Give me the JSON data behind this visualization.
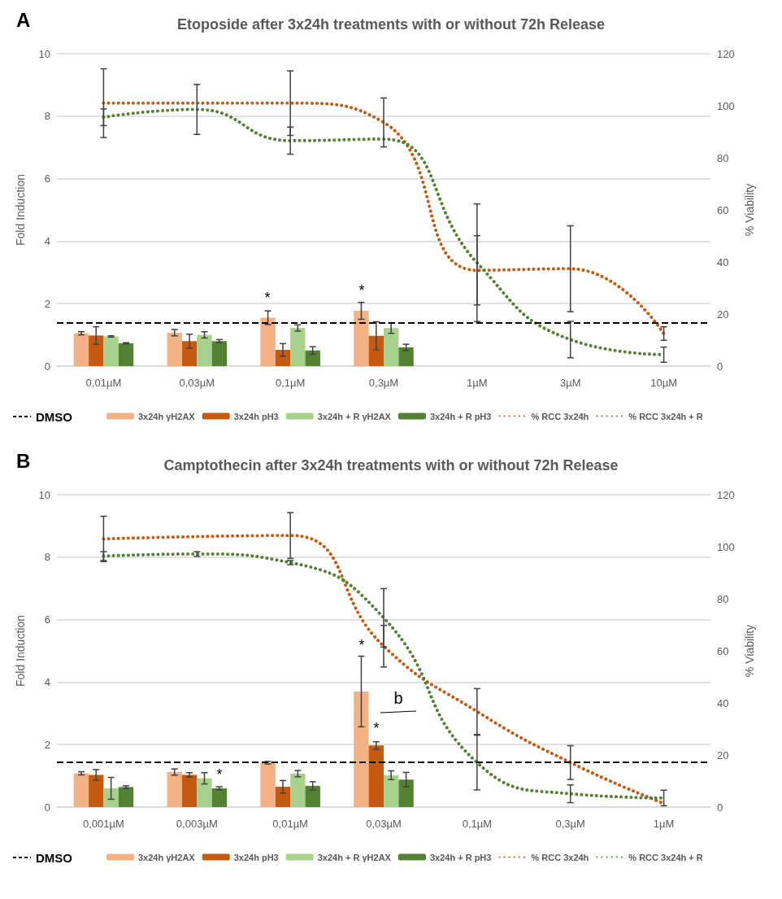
{
  "chart_data": [
    {
      "type": "bar",
      "title": "Etoposide after 3x24h treatments with or without 72h Release",
      "ylabel": "Fold Induction",
      "y2label": "% Viability",
      "categories": [
        "0,01µM",
        "0,03µM",
        "0,1µM",
        "0,3µM",
        "1µM",
        "3µM",
        "10µM"
      ],
      "series": [
        {
          "name": "3x24h γH2AX",
          "color": "#f4b183",
          "values": [
            1.05,
            1.07,
            1.55,
            1.77,
            null,
            null,
            null
          ],
          "errors": [
            0.05,
            0.1,
            0.22,
            0.27,
            null,
            null,
            null
          ]
        },
        {
          "name": "3x24h pH3",
          "color": "#c55a11",
          "values": [
            0.98,
            0.8,
            0.52,
            0.97,
            null,
            null,
            null
          ],
          "errors": [
            0.28,
            0.22,
            0.2,
            0.45,
            null,
            null,
            null
          ]
        },
        {
          "name": "3x24h + R γH2AX",
          "color": "#a9d18e",
          "values": [
            0.95,
            1.0,
            1.22,
            1.22,
            null,
            null,
            null
          ],
          "errors": [
            0.02,
            0.1,
            0.1,
            0.17,
            null,
            null,
            null
          ]
        },
        {
          "name": "3x24h + R pH3",
          "color": "#548235",
          "values": [
            0.73,
            0.8,
            0.5,
            0.6,
            null,
            null,
            null
          ],
          "errors": [
            0.02,
            0.05,
            0.12,
            0.1,
            null,
            null,
            null
          ]
        },
        {
          "name": "% RCC 3x24h",
          "type": "line",
          "axis": "y2",
          "color": "#c55a11",
          "line_style": "dotted",
          "marker": "none",
          "values": [
            101,
            null,
            101,
            93.6,
            36.8,
            37.4,
            12.5
          ],
          "errors": [
            13.2,
            null,
            12.4,
            9.4,
            13.3,
            16.5,
            2.6
          ]
        },
        {
          "name": "% RCC 3x24h + R",
          "type": "line",
          "axis": "y2",
          "color": "#548235",
          "line_style": "dotted",
          "marker": "none",
          "values": [
            95.6,
            98.6,
            86.6,
            87.2,
            39.7,
            10.2,
            4.4
          ],
          "errors": [
            3.2,
            9.6,
            5.2,
            null,
            22.6,
            7,
            2.9
          ]
        }
      ],
      "ylim": [
        0,
        10
      ],
      "yticks": [
        0,
        2,
        4,
        6,
        8,
        10
      ],
      "y2lim": [
        0,
        120
      ],
      "y2ticks": [
        0,
        20,
        40,
        60,
        80,
        100,
        120
      ],
      "grid": "y",
      "legend": "bottom",
      "ref_lines": [
        {
          "axis": "y",
          "value": 1.38,
          "label": "DMSO",
          "color": "#000000",
          "line_style": "dashed"
        }
      ],
      "annotations": [
        "A",
        "*",
        "*"
      ]
    },
    {
      "type": "bar",
      "title": "Camptothecin after 3x24h treatments with or without 72h Release",
      "ylabel": "Fold Induction",
      "y2label": "% Viability",
      "categories": [
        "0,001µM",
        "0,003µM",
        "0,01µM",
        "0,03µM",
        "0,1µM",
        "0,3µM",
        "1µM"
      ],
      "series": [
        {
          "name": "3x24h γH2AX",
          "color": "#f4b183",
          "values": [
            1.08,
            1.12,
            1.42,
            3.7,
            null,
            null,
            null
          ],
          "errors": [
            0.05,
            0.1,
            0.04,
            1.13,
            null,
            null,
            null
          ]
        },
        {
          "name": "3x24h pH3",
          "color": "#c55a11",
          "values": [
            1.03,
            1.03,
            0.65,
            1.97,
            null,
            null,
            null
          ],
          "errors": [
            0.17,
            0.07,
            0.2,
            0.12,
            null,
            null,
            null
          ]
        },
        {
          "name": "3x24h + R γH2AX",
          "color": "#a9d18e",
          "values": [
            0.6,
            0.92,
            1.07,
            1.02,
            null,
            null,
            null
          ],
          "errors": [
            0.35,
            0.18,
            0.1,
            0.14,
            null,
            null,
            null
          ]
        },
        {
          "name": "3x24h + R pH3",
          "color": "#548235",
          "values": [
            0.64,
            0.6,
            0.68,
            0.88,
            null,
            null,
            null
          ],
          "errors": [
            0.04,
            0.05,
            0.13,
            0.23,
            null,
            null,
            null
          ]
        },
        {
          "name": "% RCC 3x24h",
          "type": "line",
          "axis": "y2",
          "color": "#c55a11",
          "line_style": "dotted",
          "marker": "none",
          "values": [
            103,
            null,
            104.3,
            61.8,
            36.7,
            17.1,
            1.4
          ],
          "errors": [
            8.7,
            null,
            8.8,
            8,
            8.8,
            6.5,
            null
          ]
        },
        {
          "name": "% RCC 3x24h + R",
          "type": "line",
          "axis": "y2",
          "color": "#548235",
          "line_style": "dotted",
          "marker": "none",
          "values": [
            96.4,
            97.2,
            93.9,
            72.7,
            17.1,
            5.1,
            3.5
          ],
          "errors": [
            1.7,
            0.9,
            0.8,
            11.2,
            10.5,
            3.4,
            3
          ]
        }
      ],
      "ylim": [
        0,
        10
      ],
      "yticks": [
        0,
        2,
        4,
        6,
        8,
        10
      ],
      "y2lim": [
        0,
        120
      ],
      "y2ticks": [
        0,
        20,
        40,
        60,
        80,
        100,
        120
      ],
      "grid": "y",
      "legend": "bottom",
      "ref_lines": [
        {
          "axis": "y",
          "value": 1.45,
          "label": "DMSO",
          "color": "#000000",
          "line_style": "dashed"
        }
      ],
      "annotations": [
        "B",
        "*",
        "*",
        "*",
        "b"
      ]
    }
  ]
}
